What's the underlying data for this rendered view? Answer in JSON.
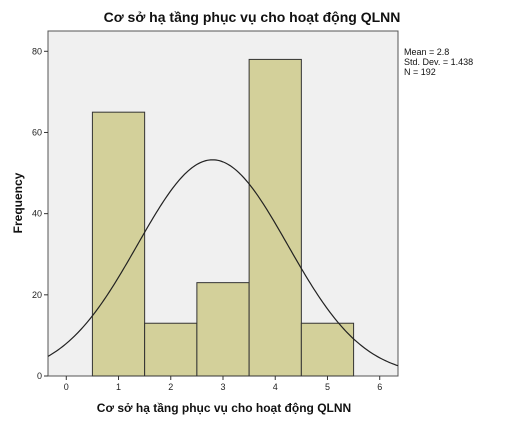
{
  "chart_data": {
    "type": "bar",
    "title": "Cơ sở hạ tầng phục vụ cho hoạt động QLNN",
    "xlabel": "Cơ sở hạ tầng phục vụ cho hoạt động QLNN",
    "ylabel": "Frequency",
    "categories": [
      "1",
      "2",
      "3",
      "4",
      "5"
    ],
    "x": [
      1,
      2,
      3,
      4,
      5
    ],
    "values": [
      65,
      13,
      23,
      78,
      13
    ],
    "xlim": [
      -0.35,
      6.35
    ],
    "ylim": [
      0,
      85
    ],
    "xticks": [
      0,
      1,
      2,
      3,
      4,
      5,
      6
    ],
    "yticks": [
      0,
      20,
      40,
      60,
      80
    ],
    "bar_color": "#d3d09a",
    "plot_background": "#f0f0f0",
    "grid": false,
    "normal_curve": {
      "mean": 2.8,
      "std_dev": 1.438,
      "n": 192,
      "bin_width": 1
    },
    "stats": {
      "mean": "Mean = 2.8",
      "std_dev": "Std. Dev. = 1.438",
      "n": "N = 192"
    },
    "legend_placement": "top-right, outside plot"
  }
}
